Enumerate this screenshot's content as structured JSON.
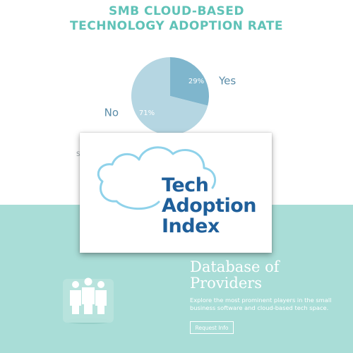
{
  "chart": {
    "title_line1": "SMB CLOUD-BASED",
    "title_line2": "TECHNOLOGY ADOPTION RATE"
  },
  "chart_data": {
    "type": "pie",
    "title": "SMB CLOUD-BASED TECHNOLOGY ADOPTION RATE",
    "categories": [
      "Yes",
      "No"
    ],
    "values": [
      29,
      71
    ],
    "labels": [
      "29%",
      "71%"
    ],
    "colors": [
      "#7fb6cd",
      "#b5d6e2"
    ]
  },
  "colors": {
    "title": "#5fc2b7",
    "bottom_background": "#a9ddd7",
    "logo_text": "#1f5f9a",
    "cloud_outline": "#8fd2ea"
  },
  "logo": {
    "line1": "Tech",
    "line2": "Adoption",
    "line3": "Index",
    "icon": "cloud-icon"
  },
  "providers": {
    "icon": "people-group-icon",
    "heading_line1": "Database of",
    "heading_line2": "Providers",
    "description": "Explore the most prominent players in the small business software and cloud-based tech space.",
    "button_label": "Request Info"
  },
  "partial_text": "S"
}
